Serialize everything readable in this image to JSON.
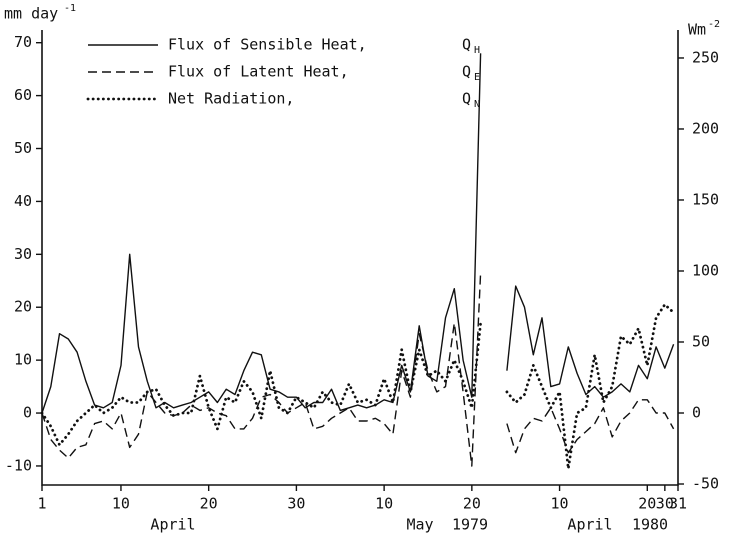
{
  "chart_data": {
    "type": "line",
    "y_label": "mm day",
    "y_label_sup": "-1",
    "y2_label": "Wm",
    "y2_label_sup": "-2",
    "period_labels": [
      "April",
      "May",
      "1979",
      "April",
      "1980"
    ],
    "x": [
      1,
      2,
      3,
      4,
      5,
      6,
      7,
      8,
      9,
      10,
      11,
      12,
      13,
      14,
      15,
      16,
      17,
      18,
      19,
      20,
      21,
      22,
      23,
      24,
      25,
      26,
      27,
      28,
      29,
      30,
      31,
      32,
      33,
      34,
      35,
      36,
      37,
      38,
      39,
      40,
      41,
      42,
      43,
      44,
      45,
      46,
      47,
      48,
      49,
      50,
      51,
      52,
      53,
      54,
      55,
      56,
      57,
      58,
      59,
      60,
      61,
      62,
      63,
      64,
      65,
      66,
      67,
      68,
      69,
      70,
      71,
      72,
      73
    ],
    "xlim": [
      1,
      73.5
    ],
    "xticks": [
      {
        "value": 1,
        "label": "1"
      },
      {
        "value": 10,
        "label": "10"
      },
      {
        "value": 20,
        "label": "20"
      },
      {
        "value": 30,
        "label": "30"
      },
      {
        "value": 40,
        "label": "10"
      },
      {
        "value": 50,
        "label": "20"
      },
      {
        "value": 60,
        "label": "10"
      },
      {
        "value": 70,
        "label": "20"
      },
      {
        "value": 72,
        "label": "30"
      },
      {
        "value": 73.5,
        "label": "31"
      }
    ],
    "ylim": [
      -13.6,
      72.4
    ],
    "yticks": [
      -10,
      0,
      10,
      20,
      30,
      40,
      50,
      60,
      70
    ],
    "y2lim": [
      -50.7,
      269.7
    ],
    "y2ticks": [
      -50,
      0,
      50,
      100,
      150,
      200,
      250
    ],
    "series": [
      {
        "name": "Flux of Sensible Heat,",
        "symbol": "Q",
        "subscript": "H",
        "color": "#111111",
        "dash": "solid",
        "values": [
          0,
          5,
          15,
          14,
          11.5,
          6,
          1.5,
          1,
          2,
          9,
          30,
          12.5,
          6,
          1,
          2,
          1,
          1.5,
          2,
          3,
          4,
          2,
          4.5,
          3.5,
          8,
          11.5,
          11,
          4.5,
          4,
          3,
          3,
          1,
          2,
          2,
          4.5,
          0.5,
          1,
          1.5,
          1,
          1.5,
          2.5,
          2,
          9,
          4,
          16.5,
          7,
          6,
          18,
          23.5,
          10,
          3,
          68,
          null,
          null,
          8,
          24,
          20,
          11,
          18,
          5,
          5.5,
          12.5,
          7.5,
          3.5,
          5,
          3,
          4,
          5.5,
          4,
          9,
          6.5,
          12.5,
          8.5,
          13
        ]
      },
      {
        "name": "Flux of Latent Heat,",
        "symbol": "Q",
        "subscript": "E",
        "color": "#111111",
        "dash": "dashed",
        "values": [
          0,
          -5,
          -7,
          -8.5,
          -6.5,
          -6,
          -2,
          -1.5,
          -3,
          0,
          -6.5,
          -4,
          4,
          2,
          0,
          -0.5,
          0,
          1.5,
          0.5,
          1,
          0,
          -0.5,
          -3,
          -3,
          -1,
          3,
          3.5,
          2,
          0,
          1,
          2,
          -3,
          -2.5,
          -1,
          0,
          1,
          -1.5,
          -1.5,
          -1,
          -2,
          -4,
          8,
          3,
          15,
          8,
          4,
          5,
          17,
          4,
          -10,
          26.5,
          null,
          null,
          -2,
          -7.5,
          -3,
          -1,
          -1.5,
          1,
          -3,
          -7.5,
          -5,
          -3.5,
          -2,
          1,
          -4.5,
          -1.5,
          0,
          2.5,
          2.5,
          0,
          0,
          -3
        ]
      },
      {
        "name": "Net Radiation,",
        "symbol": "Q",
        "subscript": "N",
        "color": "#111111",
        "dash": "dotted",
        "values": [
          0,
          -2.5,
          -6,
          -4,
          -1.5,
          0,
          1.5,
          0,
          1,
          3,
          2,
          2,
          4,
          4.5,
          1.5,
          -0.5,
          0,
          0,
          7,
          1,
          -3,
          3,
          2,
          6,
          4,
          -1,
          8,
          1,
          0,
          3,
          2,
          1,
          4,
          2,
          1.5,
          5.5,
          2,
          2.5,
          1.5,
          6.5,
          2,
          12,
          4,
          12,
          7,
          8,
          6,
          10,
          6,
          1,
          17,
          null,
          null,
          4,
          2,
          3.5,
          9,
          5,
          1,
          4,
          -10.5,
          0,
          1,
          11,
          2,
          5,
          14.5,
          13,
          16,
          9,
          18,
          20.5,
          19
        ]
      }
    ]
  }
}
